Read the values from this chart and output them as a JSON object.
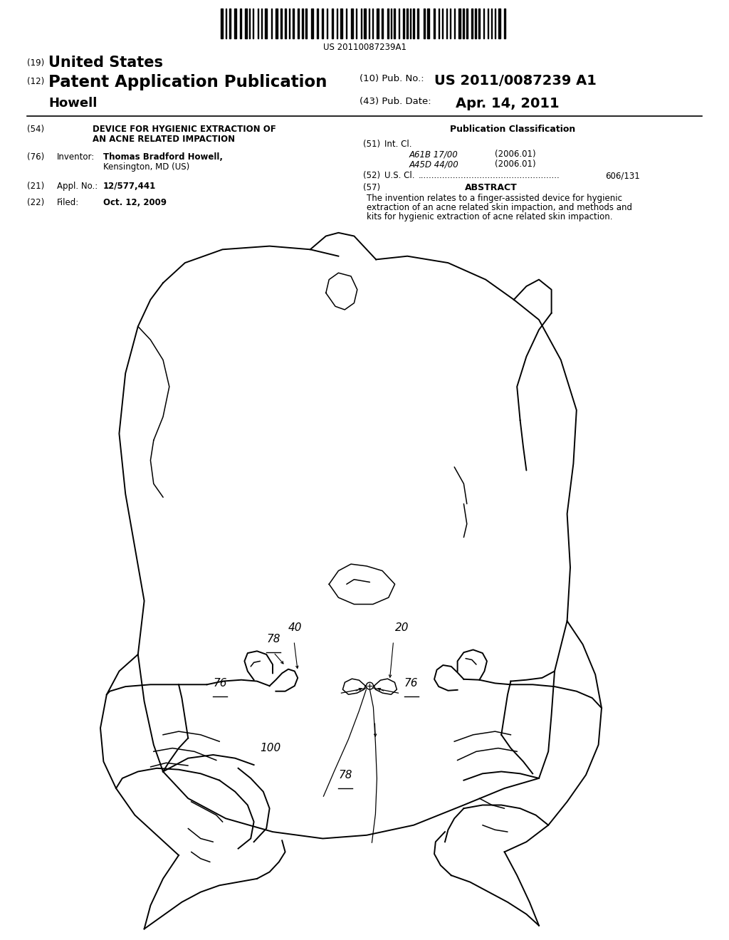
{
  "background_color": "#ffffff",
  "barcode_text": "US 20110087239A1",
  "header_line19_small": "(19)",
  "header_line19_large": "United States",
  "header_line12_small": "(12)",
  "header_line12_large": "Patent Application Publication",
  "pub_no_label": "(10) Pub. No.:",
  "pub_no_val": "US 2011/0087239 A1",
  "inventor_last": "Howell",
  "pub_date_label": "(43) Pub. Date:",
  "pub_date_val": "Apr. 14, 2011",
  "f54_label": "(54)",
  "f54_title1": "DEVICE FOR HYGIENIC EXTRACTION OF",
  "f54_title2": "AN ACNE RELATED IMPACTION",
  "f76_label": "(76)",
  "f76_key": "Inventor:",
  "f76_val1": "Thomas Bradford Howell,",
  "f76_val2": "Kensington, MD (US)",
  "f21_label": "(21)",
  "f21_key": "Appl. No.:",
  "f21_val": "12/577,441",
  "f22_label": "(22)",
  "f22_key": "Filed:",
  "f22_val": "Oct. 12, 2009",
  "pub_class_header": "Publication Classification",
  "f51_label": "(51)",
  "f51_key": "Int. Cl.",
  "f51_code1": "A61B 17/00",
  "f51_year1": "(2006.01)",
  "f51_code2": "A45D 44/00",
  "f51_year2": "(2006.01)",
  "f52_label": "(52)",
  "f52_key": "U.S. Cl.",
  "f52_dots": ".....................................................",
  "f52_val": "606/131",
  "f57_label": "(57)",
  "f57_header": "ABSTRACT",
  "f57_text1": "The invention relates to a finger-assisted device for hygienic",
  "f57_text2": "extraction of an acne related skin impaction, and methods and",
  "f57_text3": "kits for hygienic extraction of acne related skin impaction.",
  "lw_main": 1.4,
  "lw_detail": 1.1,
  "label_fs": 11
}
